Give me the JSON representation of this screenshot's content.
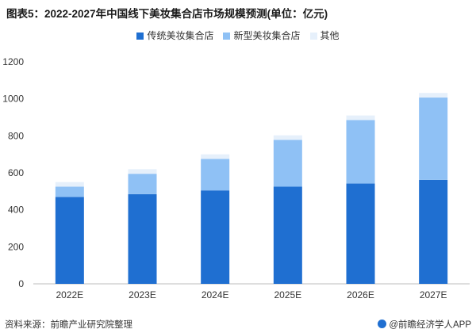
{
  "title": "图表5：2022-2027年中国线下美妆集合店市场规模预测(单位：亿元)",
  "legend": [
    {
      "label": "传统美妆集合店",
      "color": "#1f6fd1"
    },
    {
      "label": "新型美妆集合店",
      "color": "#8fc1f5"
    },
    {
      "label": "其他",
      "color": "#e6f0fb"
    }
  ],
  "chart_data": {
    "type": "bar",
    "stacked": true,
    "categories": [
      "2022E",
      "2023E",
      "2024E",
      "2025E",
      "2026E",
      "2027E"
    ],
    "series": [
      {
        "name": "传统美妆集合店",
        "color": "#1f6fd1",
        "values": [
          470,
          485,
          505,
          525,
          542,
          562
        ]
      },
      {
        "name": "新型美妆集合店",
        "color": "#8fc1f5",
        "values": [
          55,
          110,
          170,
          253,
          343,
          445
        ]
      },
      {
        "name": "其他",
        "color": "#e6f0fb",
        "values": [
          25,
          25,
          25,
          25,
          25,
          25
        ]
      }
    ],
    "ylim": [
      0,
      1200
    ],
    "yticks": [
      0,
      200,
      400,
      600,
      800,
      1000,
      1200
    ],
    "grid": false,
    "legend_position": "top-center"
  },
  "footer": {
    "source": "资料来源：前瞻产业研究院整理",
    "brand": "@前瞻经济学人APP"
  }
}
